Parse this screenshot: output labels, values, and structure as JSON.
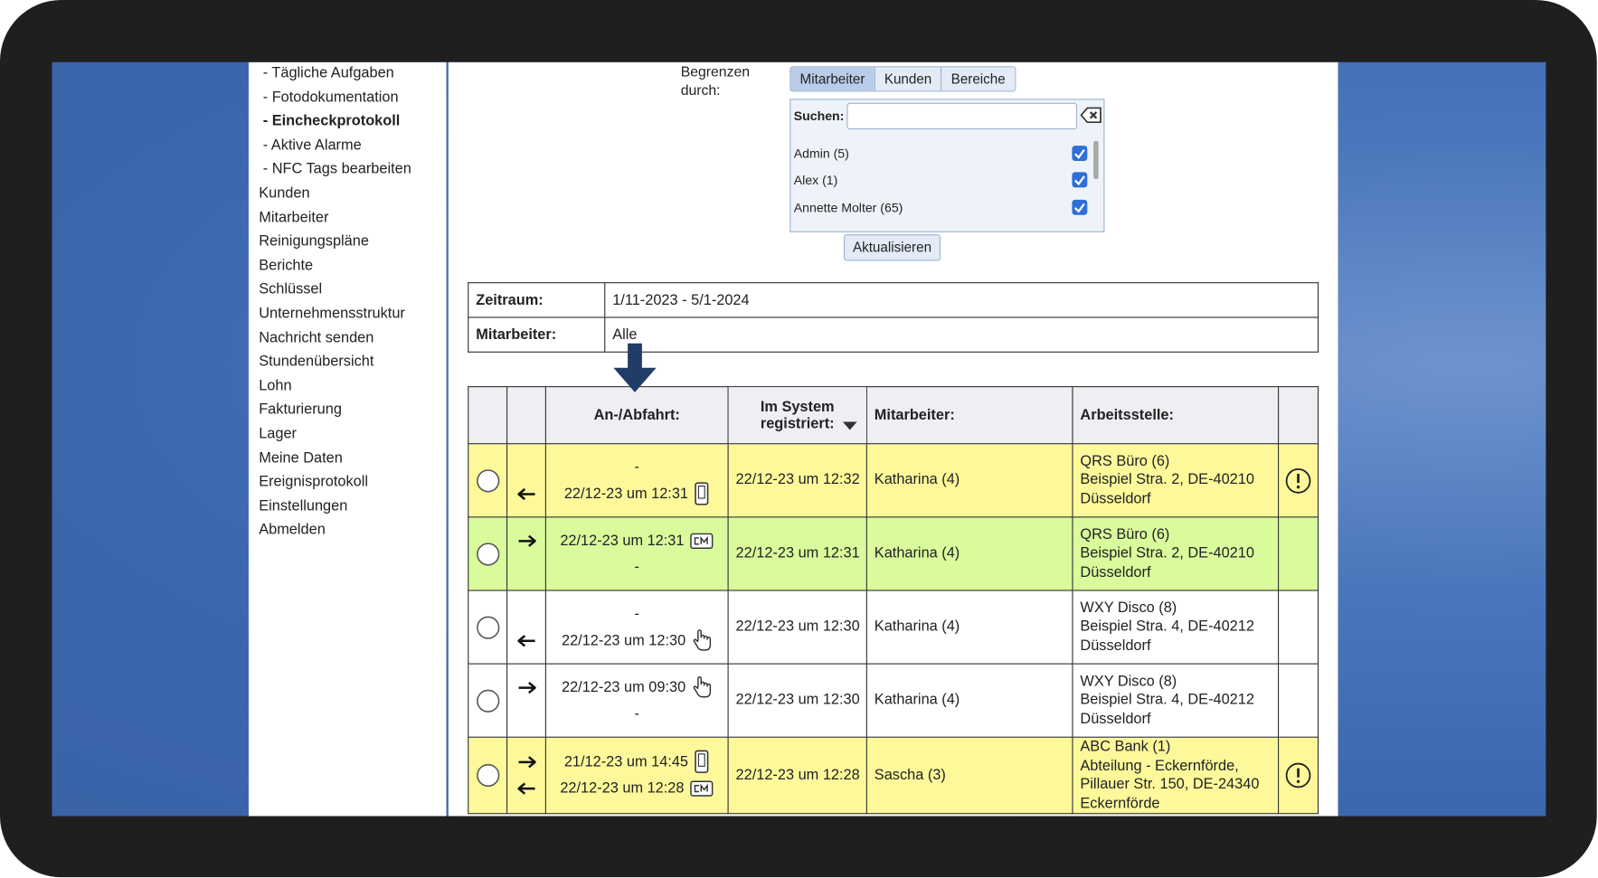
{
  "sidebar": {
    "items": [
      "- Tägliche Aufgaben",
      "- Fotodokumentation",
      "- Eincheckprotokoll",
      "- Aktive Alarme",
      "- NFC Tags bearbeiten",
      "Kunden",
      "Mitarbeiter",
      "Reinigungspläne",
      "Berichte",
      "Schlüssel",
      "Unternehmensstruktur",
      "Nachricht senden",
      "Stundenübersicht",
      "Lohn",
      "Fakturierung",
      "Lager",
      "Meine Daten",
      "Ereignisprotokoll",
      "Einstellungen",
      "Abmelden"
    ]
  },
  "filter": {
    "label": "Begrenzen\ndurch:",
    "tabs": [
      "Mitarbeiter",
      "Kunden",
      "Bereiche"
    ],
    "search_label": "Suchen:",
    "list": [
      {
        "label": "Admin (5)",
        "checked": true
      },
      {
        "label": "Alex (1)",
        "checked": true
      },
      {
        "label": "Annette Molter (65)",
        "checked": true
      }
    ],
    "button": "Aktualisieren"
  },
  "info": {
    "rows": [
      [
        "Zeitraum:",
        "1/11-2023 - 5/1-2024"
      ],
      [
        "Mitarbeiter:",
        "Alle"
      ]
    ]
  },
  "table": {
    "headers": [
      "An-/Abfahrt:",
      "Im System\nregistriert:",
      "Mitarbeiter:",
      "Arbeitsstelle:"
    ],
    "rows": [
      {
        "color": "#fdf99b",
        "alert": true,
        "times": [
          {
            "text": "-"
          },
          {
            "text": "22/12-23 um 12:31",
            "icon": "phone",
            "arrow": "left"
          }
        ],
        "registered": "22/12-23 um 12:32",
        "employee": "Katharina (4)",
        "workplace": "QRS Büro (6)\nBeispiel Stra. 2, DE-40210\nDüsseldorf"
      },
      {
        "color": "#d9fb9c",
        "alert": false,
        "times": [
          {
            "text": "22/12-23 um 12:31",
            "icon": "cm",
            "arrow": "right"
          },
          {
            "text": "-"
          }
        ],
        "registered": "22/12-23 um 12:31",
        "employee": "Katharina (4)",
        "workplace": "QRS Büro (6)\nBeispiel Stra. 2, DE-40210\nDüsseldorf"
      },
      {
        "color": "#ffffff",
        "alert": false,
        "times": [
          {
            "text": "-"
          },
          {
            "text": "22/12-23 um 12:30",
            "icon": "hand",
            "arrow": "left"
          }
        ],
        "registered": "22/12-23 um 12:30",
        "employee": "Katharina (4)",
        "workplace": "WXY Disco (8)\nBeispiel Stra. 4, DE-40212\nDüsseldorf"
      },
      {
        "color": "#ffffff",
        "alert": false,
        "times": [
          {
            "text": "22/12-23 um 09:30",
            "icon": "hand",
            "arrow": "right"
          },
          {
            "text": "-"
          }
        ],
        "registered": "22/12-23 um 12:30",
        "employee": "Katharina (4)",
        "workplace": "WXY Disco (8)\nBeispiel Stra. 4, DE-40212\nDüsseldorf"
      },
      {
        "color": "#fdf99b",
        "alert": true,
        "times": [
          {
            "text": "21/12-23 um 14:45",
            "icon": "phone",
            "arrow": "right"
          },
          {
            "text": "22/12-23 um 12:28",
            "icon": "cm",
            "arrow": "left"
          }
        ],
        "registered": "22/12-23 um 12:28",
        "employee": "Sascha (3)",
        "workplace": "ABC Bank (1)\nAbteilung - Eckernförde,\nPillauer Str. 150, DE-24340\nEckernförde"
      }
    ]
  }
}
